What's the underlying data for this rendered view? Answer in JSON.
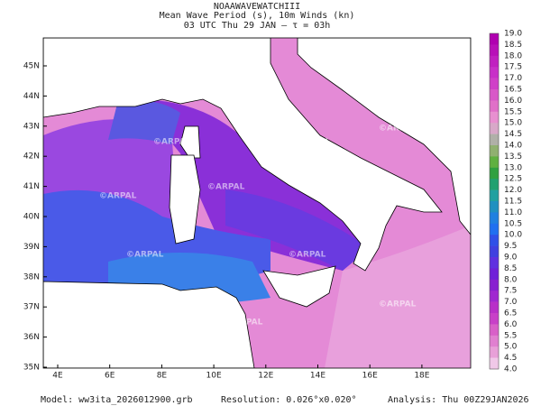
{
  "header": {
    "lines": [
      "NOAAWAVEWATCHIII",
      "Mean Wave Period (s), 10m Winds (kn)",
      "03 UTC Thu 29 JAN  —  τ = 03h"
    ]
  },
  "map": {
    "lon_labels": [
      "4E",
      "6E",
      "8E",
      "10E",
      "12E",
      "14E",
      "16E",
      "18E"
    ],
    "lat_labels": [
      "45N",
      "44N",
      "43N",
      "42N",
      "41N",
      "40N",
      "39N",
      "38N",
      "37N",
      "36N",
      "35N"
    ],
    "watermark": "©ARPAL"
  },
  "colorbar": {
    "labels": [
      "19.0",
      "18.5",
      "18.0",
      "17.5",
      "17.0",
      "16.5",
      "16.0",
      "15.5",
      "15.0",
      "14.5",
      "14.0",
      "13.5",
      "13.0",
      "12.5",
      "12.0",
      "11.5",
      "11.0",
      "10.5",
      "10.0",
      "9.5",
      "9.0",
      "8.5",
      "8.0",
      "7.5",
      "7.0",
      "6.5",
      "6.0",
      "5.5",
      "5.0",
      "4.5",
      "4.0"
    ],
    "colors": [
      "#b000b0",
      "#b810b8",
      "#c020c0",
      "#c830c8",
      "#d040c8",
      "#d858c8",
      "#e070c8",
      "#e890d0",
      "#d8a8c8",
      "#b0b0a8",
      "#90b070",
      "#60b040",
      "#30a040",
      "#20a070",
      "#20a0a0",
      "#2090c0",
      "#2080e0",
      "#2070f0",
      "#3050e8",
      "#4040e0",
      "#6030e0",
      "#7020d8",
      "#8820d0",
      "#a028d0",
      "#b830c8",
      "#c840c8",
      "#d860c8",
      "#e080d0",
      "#e8a0d8",
      "#f0c8e8"
    ]
  },
  "footer": {
    "model": "Model:  ww3ita_2026012900.grb",
    "resolution": "Resolution: 0.026°x0.020°",
    "analysis": "Analysis: Thu 00Z29JAN2026"
  }
}
